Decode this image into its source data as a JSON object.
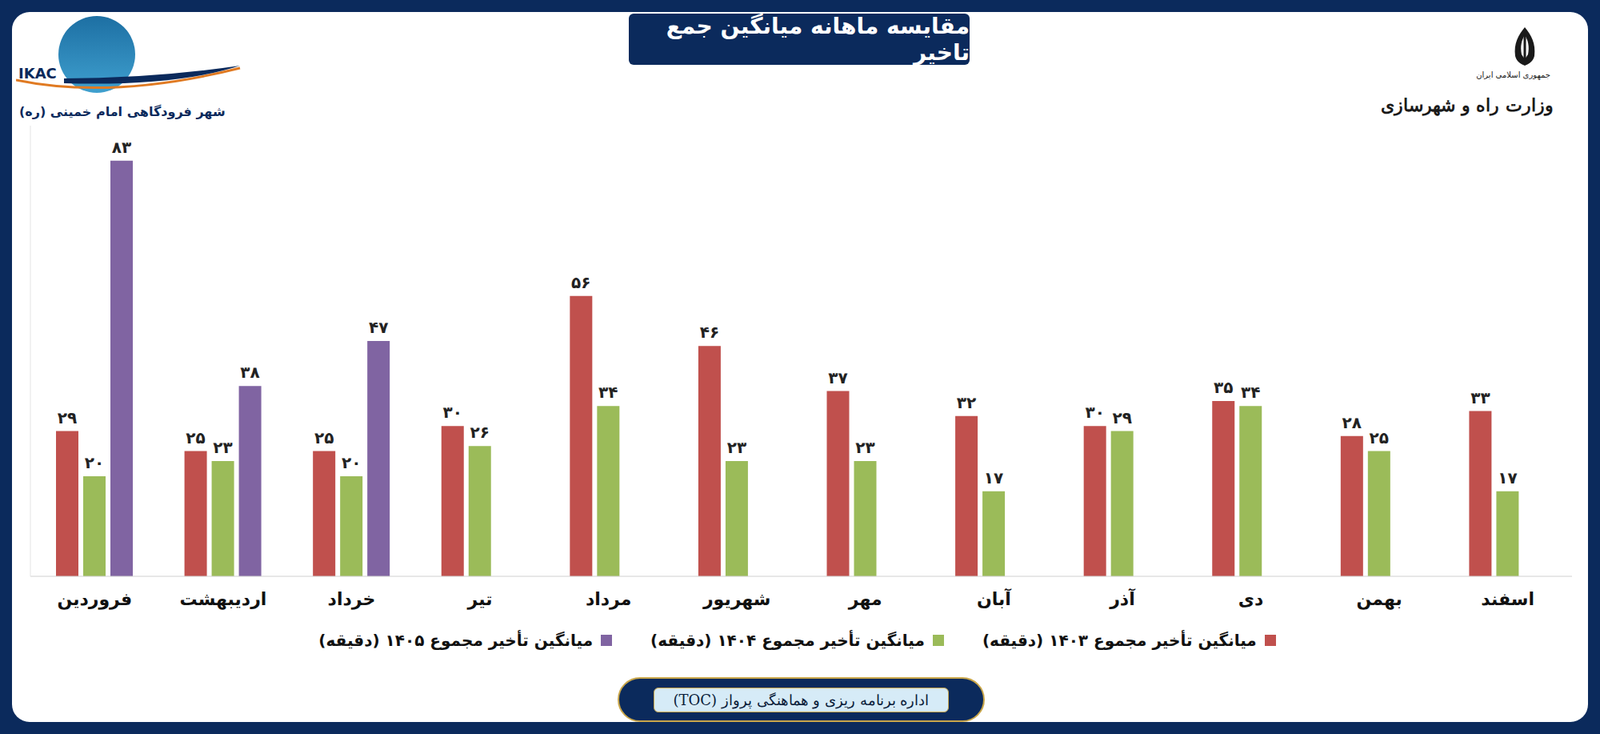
{
  "chart_data": {
    "type": "bar",
    "title": "مقایسه ماهانه میانگین جمع تاخیر",
    "categories": [
      "فروردین",
      "اردیبهشت",
      "خرداد",
      "تیر",
      "مرداد",
      "شهریور",
      "مهر",
      "آبان",
      "آذر",
      "دی",
      "بهمن",
      "اسفند"
    ],
    "series": [
      {
        "name": "میانگین تأخیر مجموع ۱۴۰۳ (دقیقه)",
        "color": "#c0504d",
        "values": [
          29,
          25,
          25,
          30,
          56,
          46,
          37,
          32,
          30,
          35,
          28,
          33
        ],
        "value_labels": [
          "۲۹",
          "۲۵",
          "۲۵",
          "۳۰",
          "۵۶",
          "۴۶",
          "۳۷",
          "۳۲",
          "۳۰",
          "۳۵",
          "۲۸",
          "۳۳"
        ]
      },
      {
        "name": "میانگین تأخیر مجموع ۱۴۰۴ (دقیقه)",
        "color": "#9bbb59",
        "values": [
          20,
          23,
          20,
          26,
          34,
          23,
          23,
          17,
          29,
          34,
          25,
          17
        ],
        "value_labels": [
          "۲۰",
          "۲۳",
          "۲۰",
          "۲۶",
          "۳۴",
          "۲۳",
          "۲۳",
          "۱۷",
          "۲۹",
          "۳۴",
          "۲۵",
          "۱۷"
        ]
      },
      {
        "name": "میانگین تأخیر مجموع ۱۴۰۵ (دقیقه)",
        "color": "#8064a2",
        "values": [
          83,
          38,
          47,
          null,
          null,
          null,
          null,
          null,
          null,
          null,
          null,
          null
        ],
        "value_labels": [
          "۸۳",
          "۳۸",
          "۴۷",
          null,
          null,
          null,
          null,
          null,
          null,
          null,
          null,
          null
        ]
      }
    ],
    "ylim": [
      0,
      90
    ],
    "grid": false,
    "legend": "bottom",
    "data_labels": true,
    "tick_labels": "x",
    "annotations": [
      "IKAC",
      "شهر فرودگاهی امام خمینی (ره)",
      "جمهوری اسلامی ایران",
      "وزارت راه و شهرسازی",
      "اداره برنامه ریزی و هماهنگی پرواز (TOC)"
    ]
  }
}
